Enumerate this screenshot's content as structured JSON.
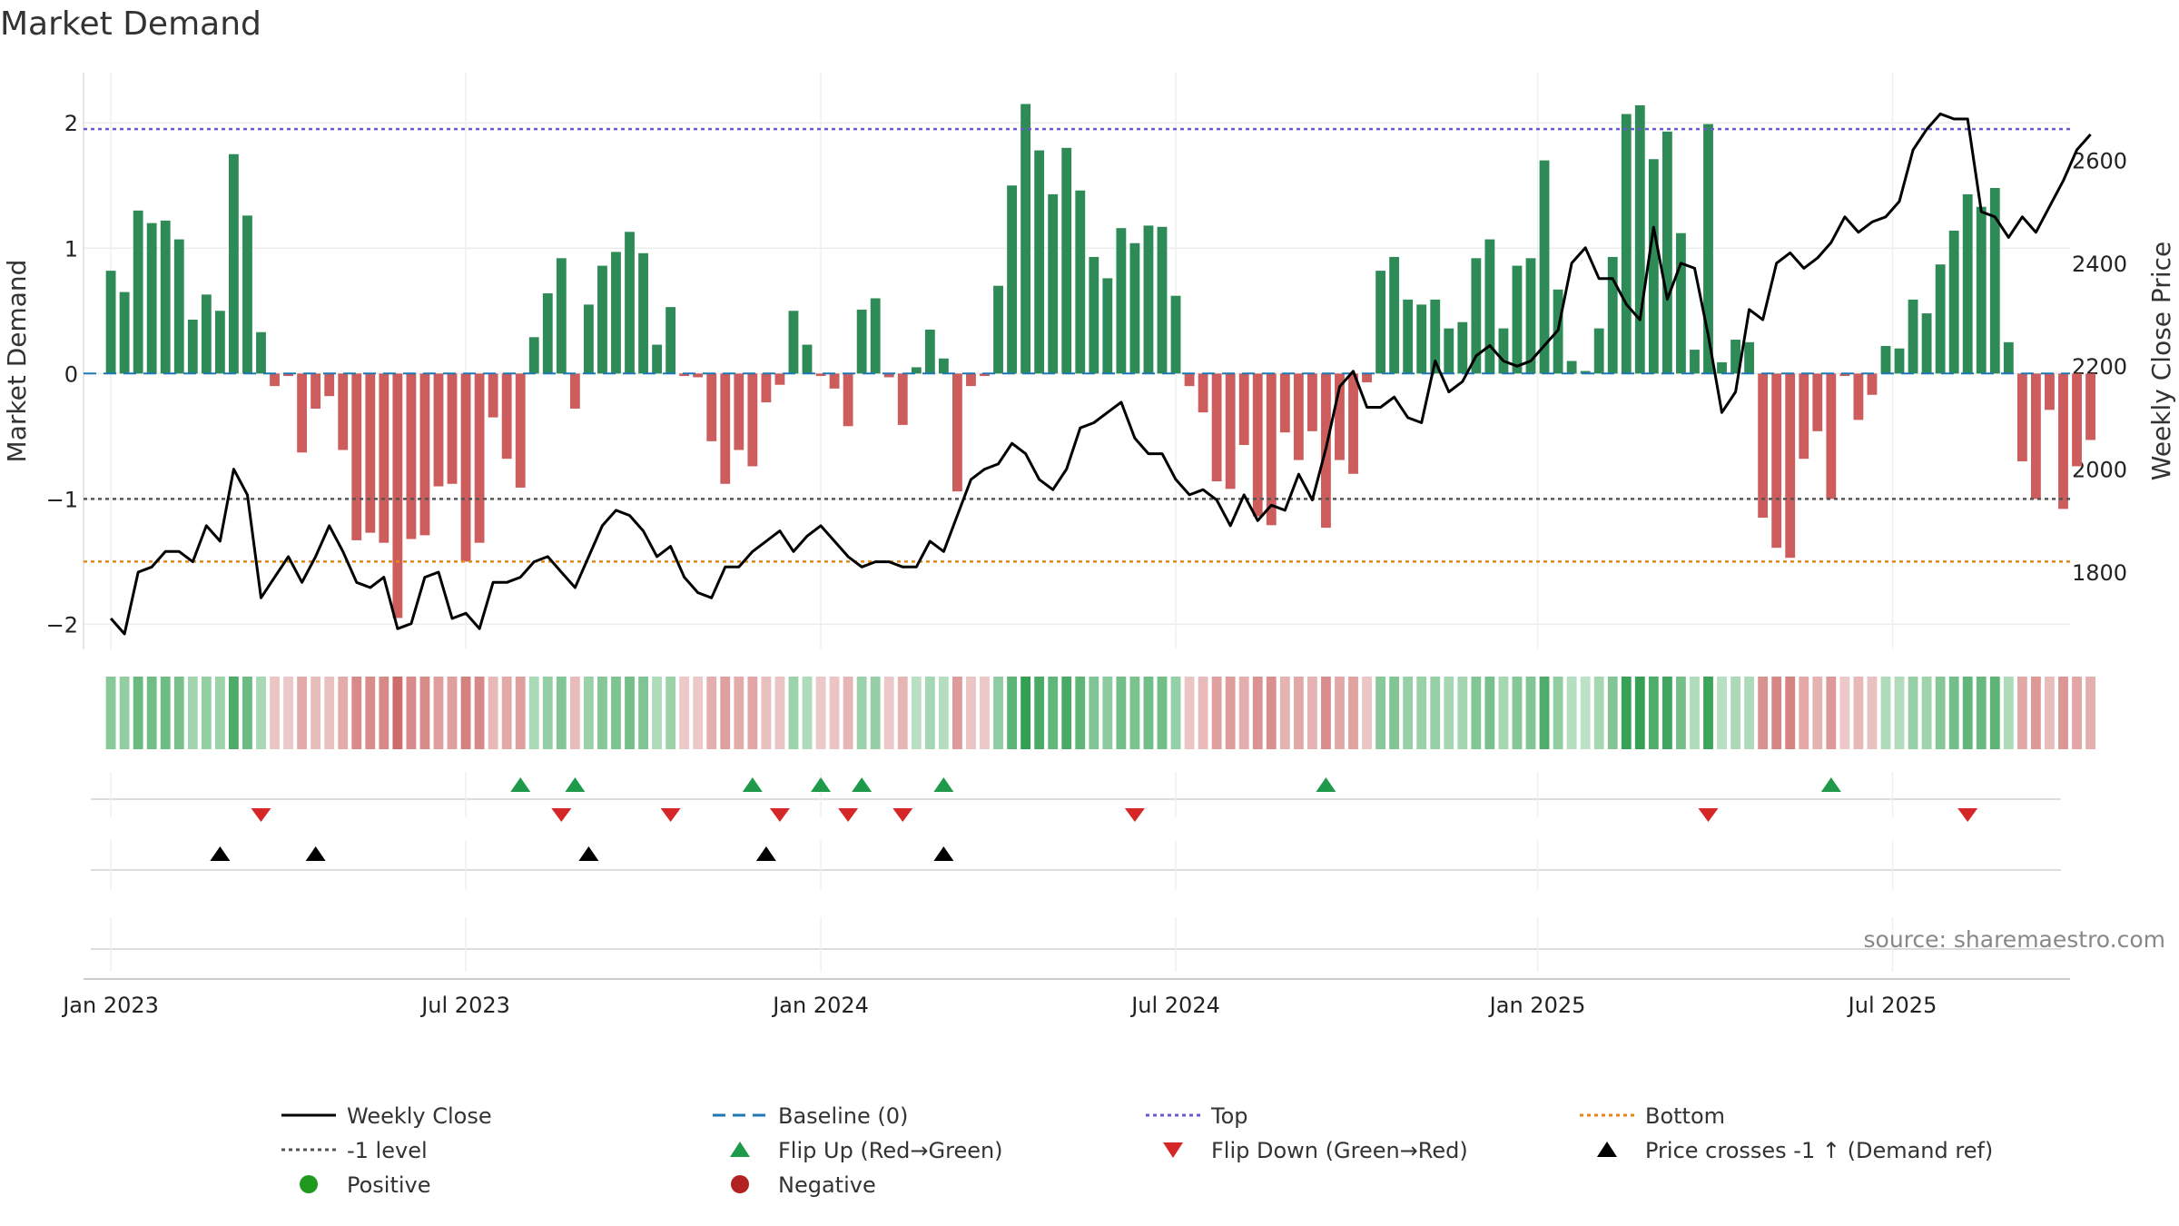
{
  "title": "Market Demand",
  "source": "source: sharemaestro.com",
  "colors": {
    "positive": "#2e8b57",
    "negative": "#cd5c5c",
    "line": "#000000",
    "top": "#6a5acd",
    "bottom": "#e08a1e",
    "minus_one": "#555555",
    "baseline": "#1f77b4",
    "flip_up": "#1f9a4a",
    "flip_down": "#d62728",
    "cross": "#000000",
    "positive_dot": "#1f9a1f",
    "negative_dot": "#b22222"
  },
  "legend": [
    {
      "label": "Weekly Close",
      "symbol": "solid-line"
    },
    {
      "label": "Baseline (0)",
      "symbol": "dash-line"
    },
    {
      "label": "Top",
      "symbol": "dot-line-top"
    },
    {
      "label": "Bottom",
      "symbol": "dot-line-bottom"
    },
    {
      "label": "-1 level",
      "symbol": "dot-line-minus"
    },
    {
      "label": "Flip Up (Red→Green)",
      "symbol": "tri-up-green"
    },
    {
      "label": "Flip Down (Green→Red)",
      "symbol": "tri-down-red"
    },
    {
      "label": "Price crosses -1 ↑ (Demand ref)",
      "symbol": "tri-up-black"
    },
    {
      "label": "Positive",
      "symbol": "dot-green"
    },
    {
      "label": "Negative",
      "symbol": "dot-red"
    }
  ],
  "chart_data": {
    "type": "bar",
    "title": "Market Demand",
    "ylabel": "Market Demand",
    "y2label": "Weekly Close Price",
    "ylim": [
      -2.2,
      2.4
    ],
    "y2lim": [
      1650,
      2770
    ],
    "yticks": [
      -2,
      -1,
      0,
      1,
      2
    ],
    "y2ticks": [
      1800,
      2000,
      2200,
      2400,
      2600
    ],
    "y2ticklabels": [
      "1800",
      "2000",
      "2200",
      "2400",
      "2600"
    ],
    "ytick_labels": [
      "−2",
      "−1",
      "0",
      "1",
      "2"
    ],
    "xlim_weeks": [
      -2,
      143.5
    ],
    "xticks": [
      {
        "week": 0,
        "label": "Jan 2023"
      },
      {
        "week": 26,
        "label": "Jul 2023"
      },
      {
        "week": 52,
        "label": "Jan 2024"
      },
      {
        "week": 78,
        "label": "Jul 2024"
      },
      {
        "week": 104.5,
        "label": "Jan 2025"
      },
      {
        "week": 130.5,
        "label": "Jul 2025"
      }
    ],
    "reference_lines": {
      "top": 1.95,
      "bottom": -1.5,
      "minus_one": -1,
      "baseline": 0
    },
    "demand": [
      0.82,
      0.65,
      1.3,
      1.2,
      1.22,
      1.07,
      0.43,
      0.63,
      0.5,
      1.75,
      1.26,
      0.33,
      -0.1,
      -0.02,
      -0.63,
      -0.28,
      -0.18,
      -0.61,
      -1.33,
      -1.27,
      -1.35,
      -1.95,
      -1.32,
      -1.29,
      -0.9,
      -0.88,
      -1.5,
      -1.35,
      -0.35,
      -0.68,
      -0.91,
      0.29,
      0.64,
      0.92,
      -0.28,
      0.55,
      0.86,
      0.97,
      1.13,
      0.96,
      0.23,
      0.53,
      -0.02,
      -0.03,
      -0.54,
      -0.88,
      -0.61,
      -0.74,
      -0.23,
      -0.09,
      0.5,
      0.23,
      -0.02,
      -0.12,
      -0.42,
      0.51,
      0.6,
      -0.03,
      -0.41,
      0.05,
      0.35,
      0.12,
      -0.94,
      -0.1,
      -0.02,
      0.7,
      1.5,
      2.15,
      1.78,
      1.43,
      1.8,
      1.46,
      0.93,
      0.76,
      1.16,
      1.04,
      1.18,
      1.17,
      0.62,
      -0.1,
      -0.31,
      -0.86,
      -0.92,
      -0.57,
      -1.14,
      -1.21,
      -0.47,
      -0.69,
      -0.46,
      -1.23,
      -0.69,
      -0.8,
      -0.07,
      0.82,
      0.93,
      0.59,
      0.55,
      0.59,
      0.36,
      0.41,
      0.92,
      1.07,
      0.36,
      0.86,
      0.92,
      1.7,
      0.67,
      0.1,
      0.02,
      0.36,
      0.93,
      2.07,
      2.14,
      1.71,
      1.93,
      1.12,
      0.19,
      1.99,
      0.09,
      0.27,
      0.25,
      -1.15,
      -1.39,
      -1.47,
      -0.68,
      -0.46,
      -1.0,
      -0.02,
      -0.37,
      -0.17,
      0.22,
      0.2,
      0.59,
      0.48,
      0.87,
      1.14,
      1.43,
      1.33,
      1.48,
      0.25,
      -0.7,
      -1.0,
      -0.29,
      -1.08,
      -0.74,
      -0.53
    ],
    "close": [
      1710,
      1680,
      1800,
      1810,
      1840,
      1840,
      1820,
      1890,
      1860,
      2000,
      1950,
      1750,
      1790,
      1830,
      1780,
      1830,
      1890,
      1840,
      1780,
      1770,
      1790,
      1690,
      1700,
      1790,
      1800,
      1710,
      1720,
      1690,
      1780,
      1780,
      1790,
      1820,
      1830,
      1800,
      1770,
      1830,
      1890,
      1920,
      1910,
      1880,
      1830,
      1850,
      1790,
      1760,
      1750,
      1810,
      1810,
      1840,
      1860,
      1880,
      1840,
      1870,
      1890,
      1860,
      1830,
      1810,
      1820,
      1820,
      1810,
      1810,
      1860,
      1840,
      1910,
      1980,
      2000,
      2010,
      2050,
      2030,
      1980,
      1960,
      2000,
      2080,
      2090,
      2110,
      2130,
      2060,
      2030,
      2030,
      1980,
      1950,
      1960,
      1940,
      1890,
      1950,
      1900,
      1930,
      1920,
      1990,
      1940,
      2040,
      2160,
      2190,
      2120,
      2120,
      2140,
      2100,
      2090,
      2210,
      2150,
      2170,
      2220,
      2240,
      2210,
      2200,
      2210,
      2240,
      2270,
      2400,
      2430,
      2370,
      2370,
      2320,
      2290,
      2470,
      2330,
      2400,
      2390,
      2260,
      2110,
      2150,
      2310,
      2290,
      2400,
      2420,
      2390,
      2410,
      2440,
      2490,
      2460,
      2480,
      2490,
      2520,
      2620,
      2660,
      2690,
      2680,
      2680,
      2500,
      2490,
      2450,
      2490,
      2460,
      2510,
      2560,
      2620,
      2650
    ],
    "flip_up_weeks": [
      30,
      34,
      47,
      52,
      55,
      61,
      89,
      126
    ],
    "flip_down_weeks": [
      11,
      33,
      41,
      49,
      54,
      58,
      75,
      117,
      136
    ],
    "cross_up_weeks": [
      8,
      15,
      35,
      48,
      61
    ]
  }
}
